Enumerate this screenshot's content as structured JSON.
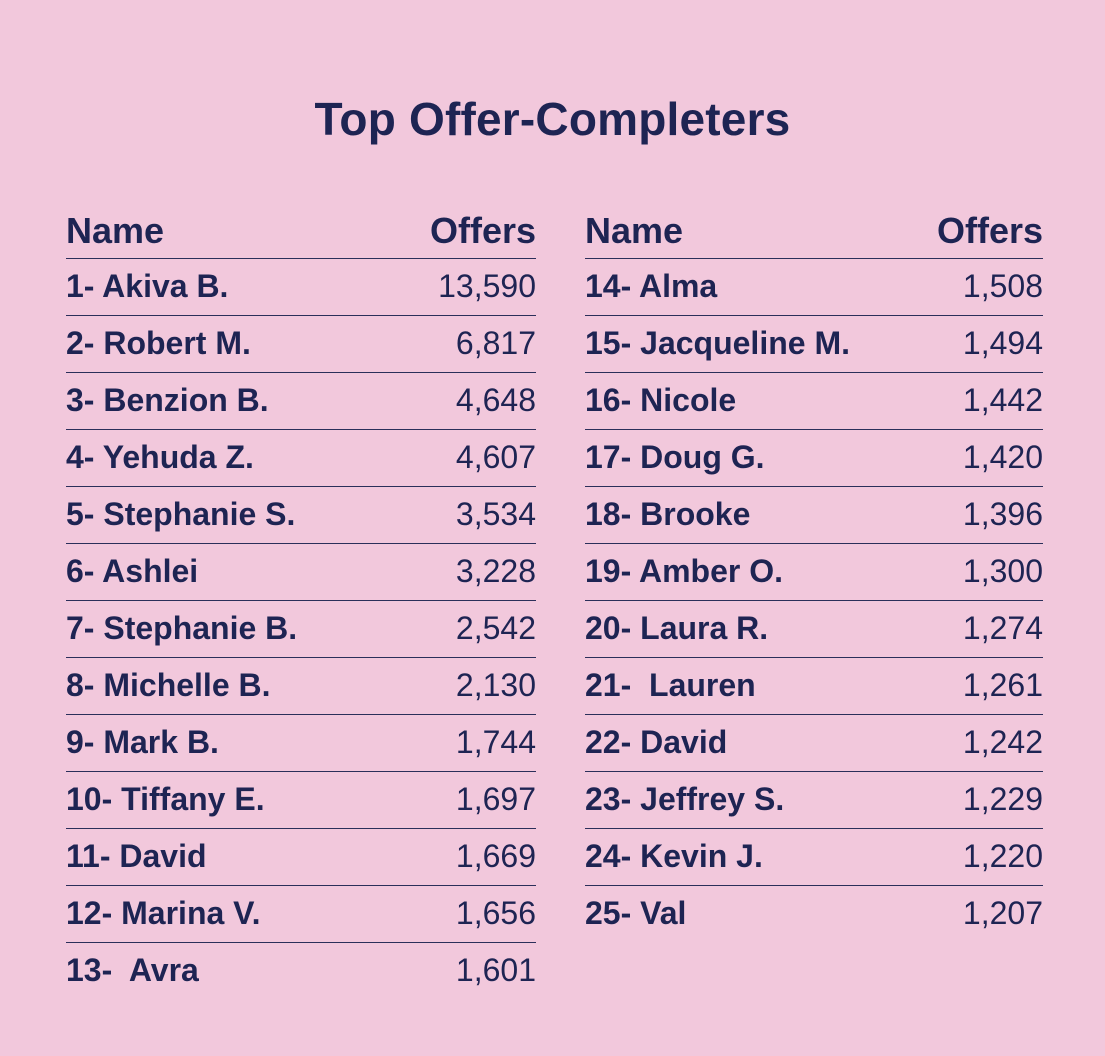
{
  "title": "Top Offer-Completers",
  "headers": {
    "name": "Name",
    "offers": "Offers"
  },
  "left": [
    {
      "name": "1- Akiva B.",
      "offers": "13,590"
    },
    {
      "name": "2- Robert M.",
      "offers": "6,817"
    },
    {
      "name": "3- Benzion B.",
      "offers": "4,648"
    },
    {
      "name": "4- Yehuda Z.",
      "offers": "4,607"
    },
    {
      "name": "5- Stephanie S.",
      "offers": "3,534"
    },
    {
      "name": "6- Ashlei",
      "offers": "3,228"
    },
    {
      "name": "7- Stephanie B.",
      "offers": "2,542"
    },
    {
      "name": "8- Michelle B.",
      "offers": "2,130"
    },
    {
      "name": "9- Mark B.",
      "offers": "1,744"
    },
    {
      "name": "10- Tiffany E.",
      "offers": "1,697"
    },
    {
      "name": "11- David",
      "offers": "1,669"
    },
    {
      "name": "12- Marina V.",
      "offers": "1,656"
    },
    {
      "name": "13-  Avra",
      "offers": "1,601"
    }
  ],
  "right": [
    {
      "name": "14- Alma",
      "offers": "1,508"
    },
    {
      "name": "15- Jacqueline M.",
      "offers": "1,494"
    },
    {
      "name": "16- Nicole",
      "offers": "1,442"
    },
    {
      "name": "17- Doug G.",
      "offers": "1,420"
    },
    {
      "name": "18- Brooke",
      "offers": "1,396"
    },
    {
      "name": "19- Amber O.",
      "offers": "1,300"
    },
    {
      "name": "20- Laura R.",
      "offers": "1,274"
    },
    {
      "name": "21-  Lauren",
      "offers": "1,261"
    },
    {
      "name": "22- David",
      "offers": "1,242"
    },
    {
      "name": "23- Jeffrey S.",
      "offers": "1,229"
    },
    {
      "name": "24- Kevin J.",
      "offers": "1,220"
    },
    {
      "name": "25- Val",
      "offers": "1,207"
    }
  ]
}
